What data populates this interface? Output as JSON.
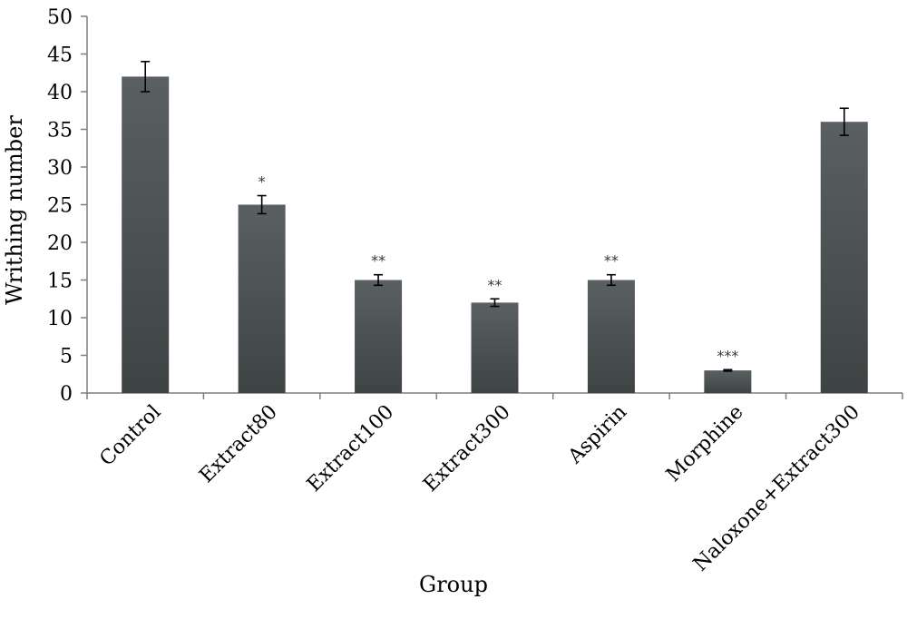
{
  "chart_data": {
    "type": "bar",
    "xlabel": "Group",
    "ylabel": "Writhing number",
    "ylim": [
      0,
      50
    ],
    "yticks": [
      0,
      5,
      10,
      15,
      20,
      25,
      30,
      35,
      40,
      45,
      50
    ],
    "grid": false,
    "legend": "none",
    "categories": [
      "Control",
      "Extract80",
      "Extract100",
      "Extract300",
      "Aspirin",
      "Morphine",
      "Naloxone+Extract300"
    ],
    "values": [
      42,
      25,
      15,
      12,
      15,
      3,
      36
    ],
    "errors": [
      2,
      1.2,
      0.7,
      0.5,
      0.7,
      0.1,
      1.8
    ],
    "significance": [
      "",
      "*",
      "**",
      "**",
      "**",
      "***",
      ""
    ],
    "bar_color": "#4d5354"
  }
}
